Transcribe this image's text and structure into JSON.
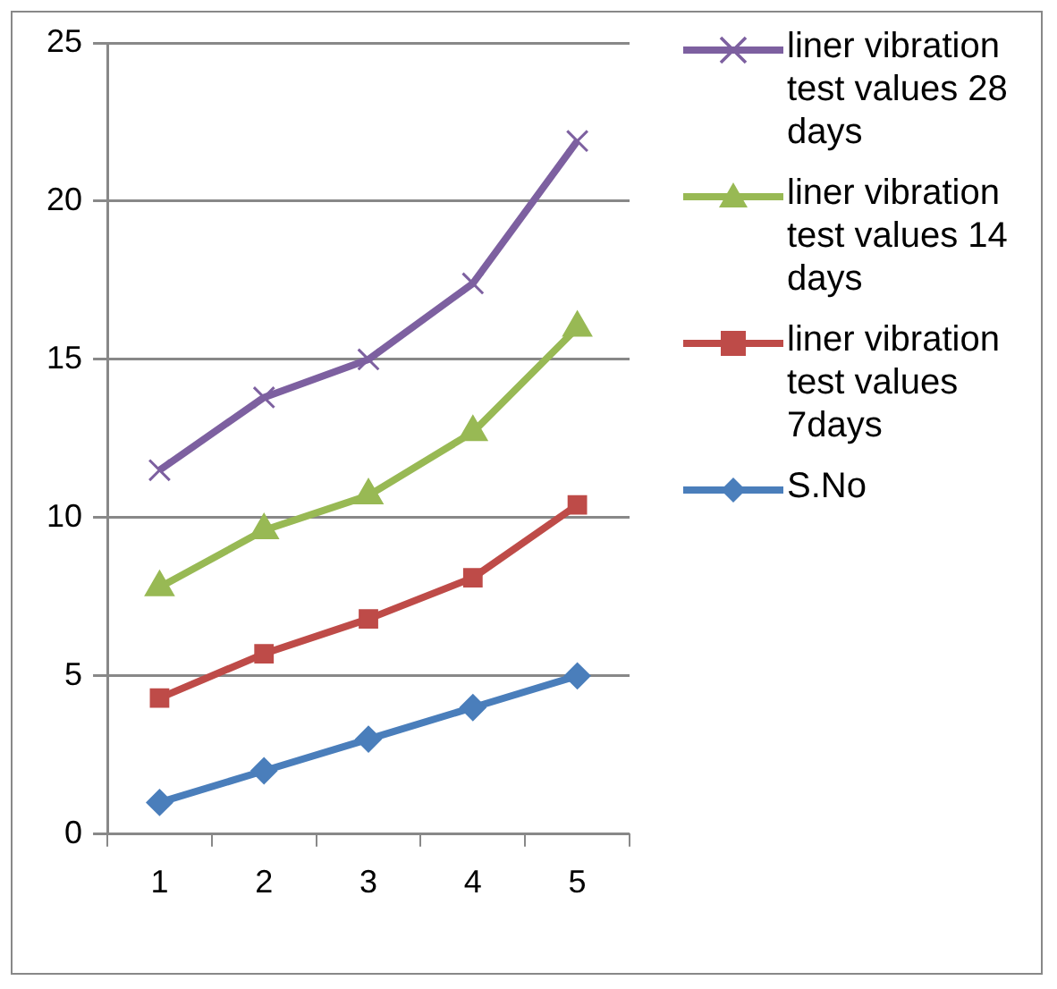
{
  "chart_data": {
    "type": "line",
    "categories": [
      "1",
      "2",
      "3",
      "4",
      "5"
    ],
    "ylim": [
      0,
      25
    ],
    "yticks": [
      0,
      5,
      10,
      15,
      20,
      25
    ],
    "grid": "y",
    "legend": "right",
    "line_style": "solid",
    "series": [
      {
        "name": "S.No",
        "color": "#4a7ebb",
        "marker": "diamond",
        "values": [
          1,
          2,
          3,
          4,
          5
        ]
      },
      {
        "name": "liner vibration test values 7days",
        "color": "#be4b48",
        "marker": "square",
        "values": [
          4.3,
          5.7,
          6.8,
          8.1,
          10.4
        ]
      },
      {
        "name": "liner vibration test values 14 days",
        "color": "#98b954",
        "marker": "triangle",
        "values": [
          7.8,
          9.6,
          10.7,
          12.7,
          16
        ]
      },
      {
        "name": "liner vibration test values 28 days",
        "color": "#7d60a0",
        "marker": "cross",
        "values": [
          11.5,
          13.8,
          15,
          17.4,
          21.9
        ]
      }
    ]
  }
}
